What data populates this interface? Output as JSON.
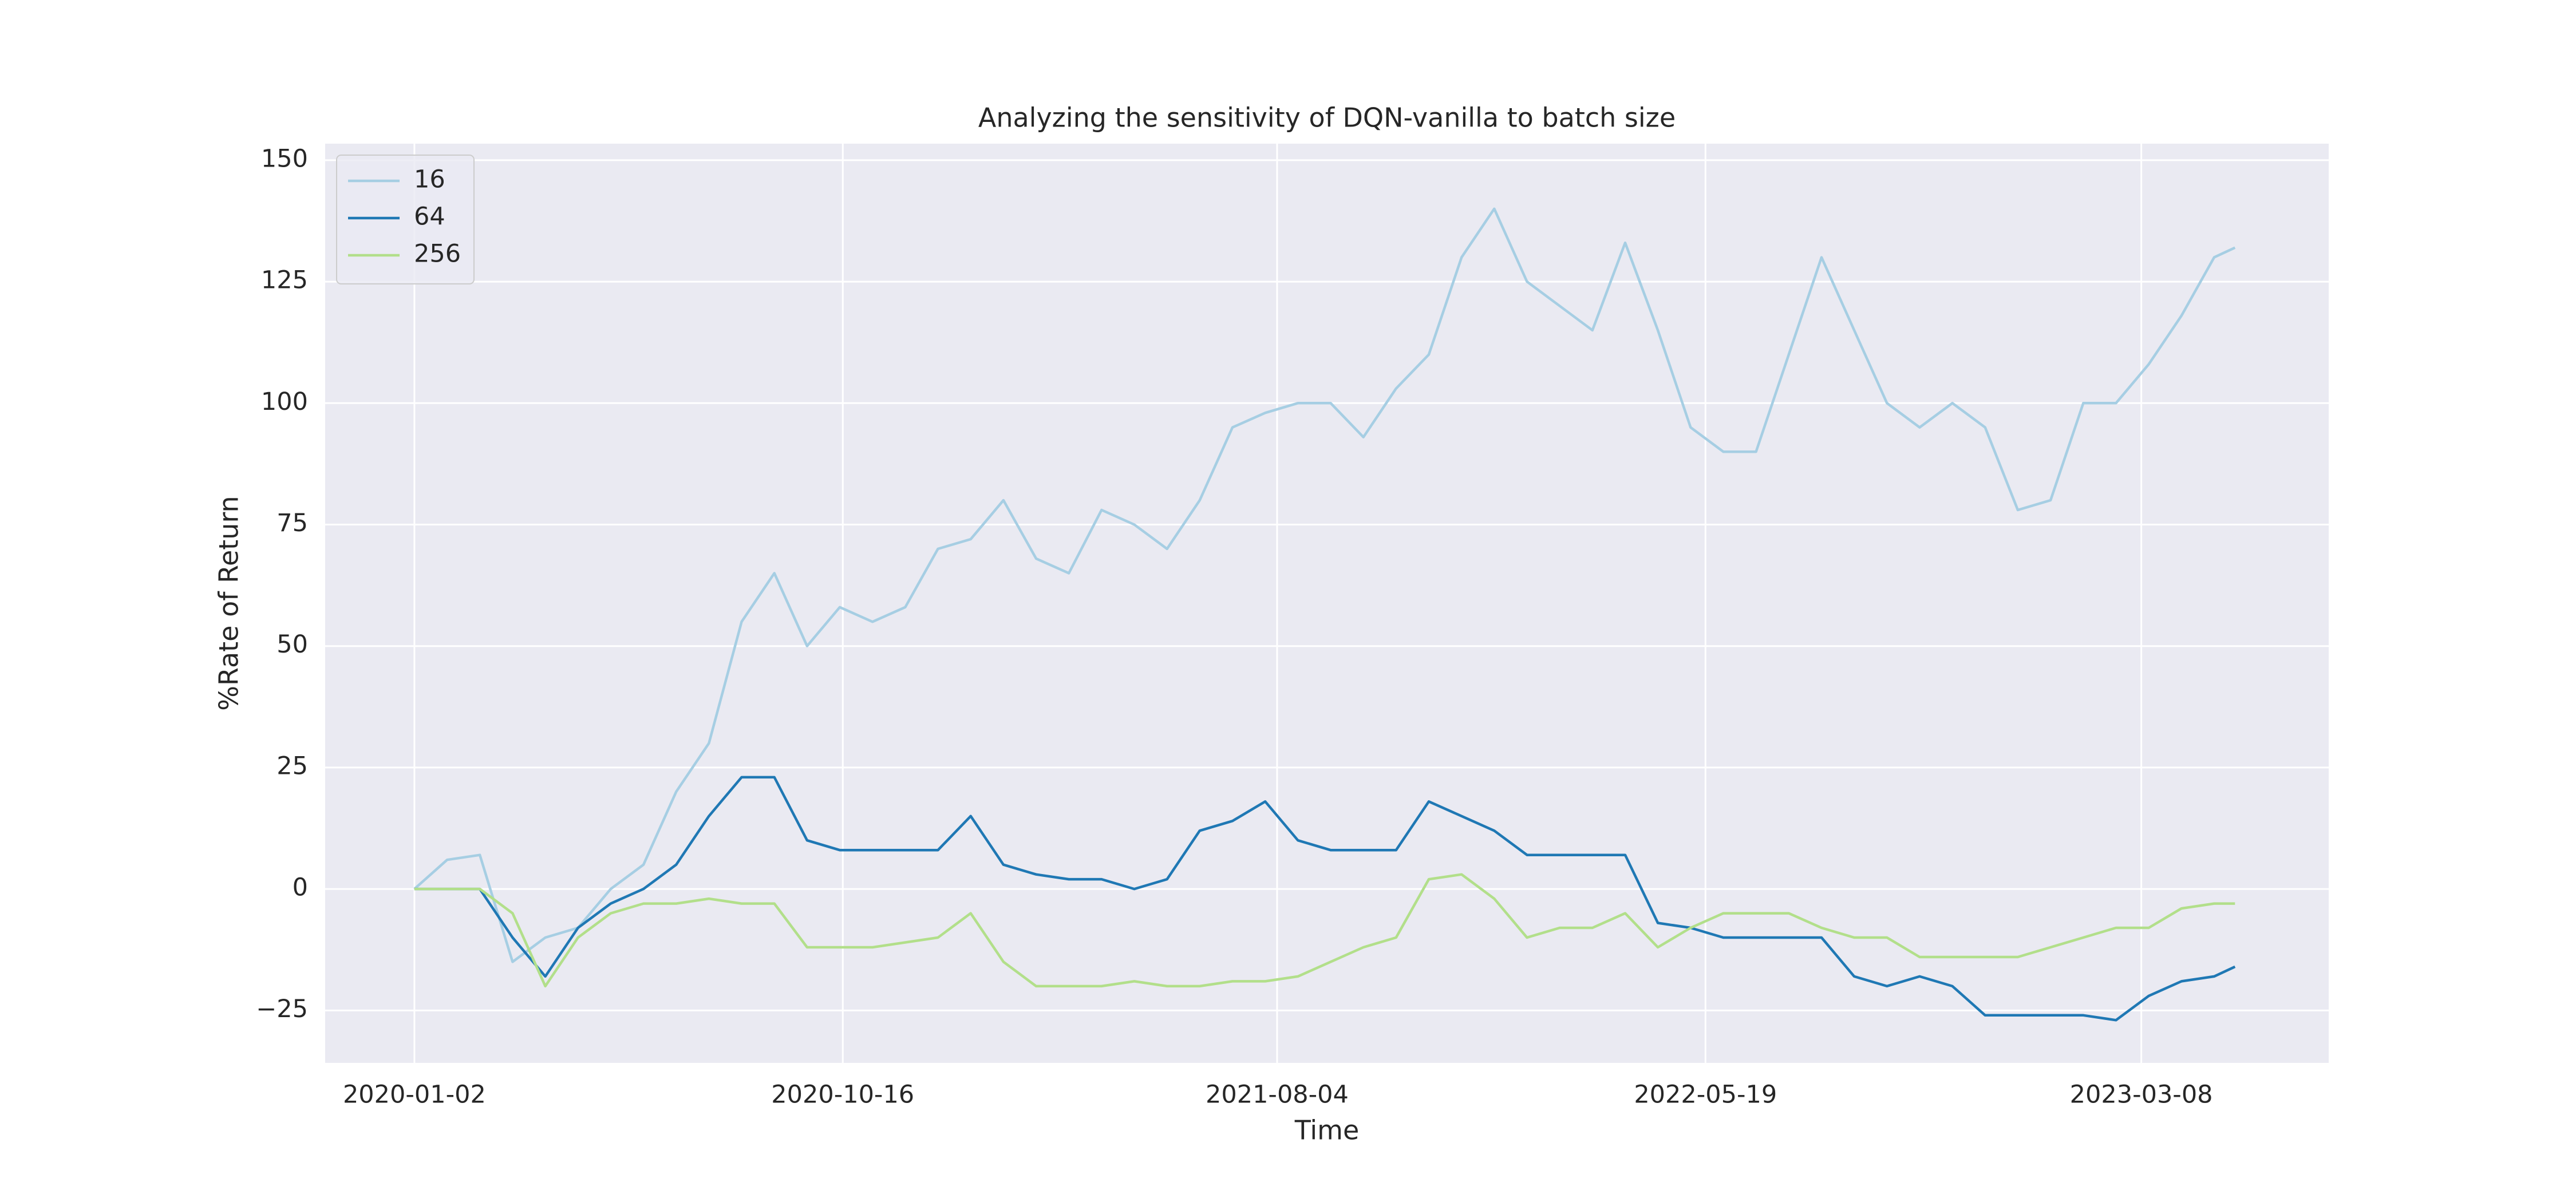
{
  "chart_data": {
    "type": "line",
    "title": "Analyzing the sensitivity of DQN-vanilla to batch size",
    "x_label": "Time",
    "y_label": "%Rate of Return",
    "x": [
      "2020-01-02",
      "2020-01-24",
      "2020-02-15",
      "2020-03-08",
      "2020-03-30",
      "2020-04-21",
      "2020-05-13",
      "2020-06-04",
      "2020-06-26",
      "2020-07-18",
      "2020-08-09",
      "2020-08-31",
      "2020-09-22",
      "2020-10-14",
      "2020-11-05",
      "2020-11-27",
      "2020-12-19",
      "2021-01-10",
      "2021-02-01",
      "2021-02-23",
      "2021-03-17",
      "2021-04-08",
      "2021-04-30",
      "2021-05-22",
      "2021-06-13",
      "2021-07-05",
      "2021-07-27",
      "2021-08-18",
      "2021-09-09",
      "2021-10-01",
      "2021-10-23",
      "2021-11-14",
      "2021-12-06",
      "2021-12-28",
      "2022-01-19",
      "2022-02-10",
      "2022-03-04",
      "2022-03-26",
      "2022-04-17",
      "2022-05-09",
      "2022-05-31",
      "2022-06-22",
      "2022-07-14",
      "2022-08-05",
      "2022-08-27",
      "2022-09-18",
      "2022-10-10",
      "2022-11-01",
      "2022-11-23",
      "2022-12-15",
      "2023-01-06",
      "2023-01-28",
      "2023-02-19",
      "2023-03-13",
      "2023-04-04",
      "2023-04-26",
      "2023-05-10"
    ],
    "series": [
      {
        "name": "16",
        "color": "#a6cee3",
        "values": [
          0,
          6,
          7,
          -15,
          -10,
          -8,
          0,
          5,
          20,
          30,
          55,
          65,
          50,
          58,
          55,
          58,
          70,
          72,
          80,
          68,
          65,
          78,
          75,
          70,
          80,
          95,
          98,
          100,
          100,
          93,
          103,
          110,
          130,
          140,
          125,
          120,
          115,
          133,
          115,
          95,
          90,
          90,
          110,
          130,
          115,
          100,
          95,
          100,
          95,
          78,
          80,
          100,
          100,
          108,
          118,
          130,
          132
        ]
      },
      {
        "name": "64",
        "color": "#1f78b4",
        "values": [
          0,
          0,
          0,
          -10,
          -18,
          -8,
          -3,
          0,
          5,
          15,
          23,
          23,
          10,
          8,
          8,
          8,
          8,
          15,
          5,
          3,
          2,
          2,
          0,
          2,
          12,
          14,
          18,
          10,
          8,
          8,
          8,
          18,
          15,
          12,
          7,
          7,
          7,
          7,
          -7,
          -8,
          -10,
          -10,
          -10,
          -10,
          -18,
          -20,
          -18,
          -20,
          -26,
          -26,
          -26,
          -26,
          -27,
          -22,
          -19,
          -18,
          -16
        ]
      },
      {
        "name": "256",
        "color": "#b2df8a",
        "values": [
          0,
          0,
          0,
          -5,
          -20,
          -10,
          -5,
          -3,
          -3,
          -2,
          -3,
          -3,
          -12,
          -12,
          -12,
          -11,
          -10,
          -5,
          -15,
          -20,
          -20,
          -20,
          -19,
          -20,
          -20,
          -19,
          -19,
          -18,
          -15,
          -12,
          -10,
          2,
          3,
          -2,
          -10,
          -8,
          -8,
          -5,
          -12,
          -8,
          -5,
          -5,
          -5,
          -8,
          -10,
          -10,
          -14,
          -14,
          -14,
          -14,
          -12,
          -10,
          -8,
          -8,
          -4,
          -3,
          -3
        ]
      }
    ],
    "xlim": [
      "2019-11-03",
      "2023-07-12"
    ],
    "xticks": [
      "2020-01-02",
      "2020-10-16",
      "2021-08-04",
      "2022-05-19",
      "2023-03-08"
    ],
    "ylim": [
      -35.8,
      153.4
    ],
    "yticks": [
      {
        "value": -25,
        "label": "−25"
      },
      0,
      25,
      50,
      75,
      100,
      125,
      150
    ],
    "grid": true,
    "legend": "upper left",
    "background": "#eaeaf2"
  }
}
